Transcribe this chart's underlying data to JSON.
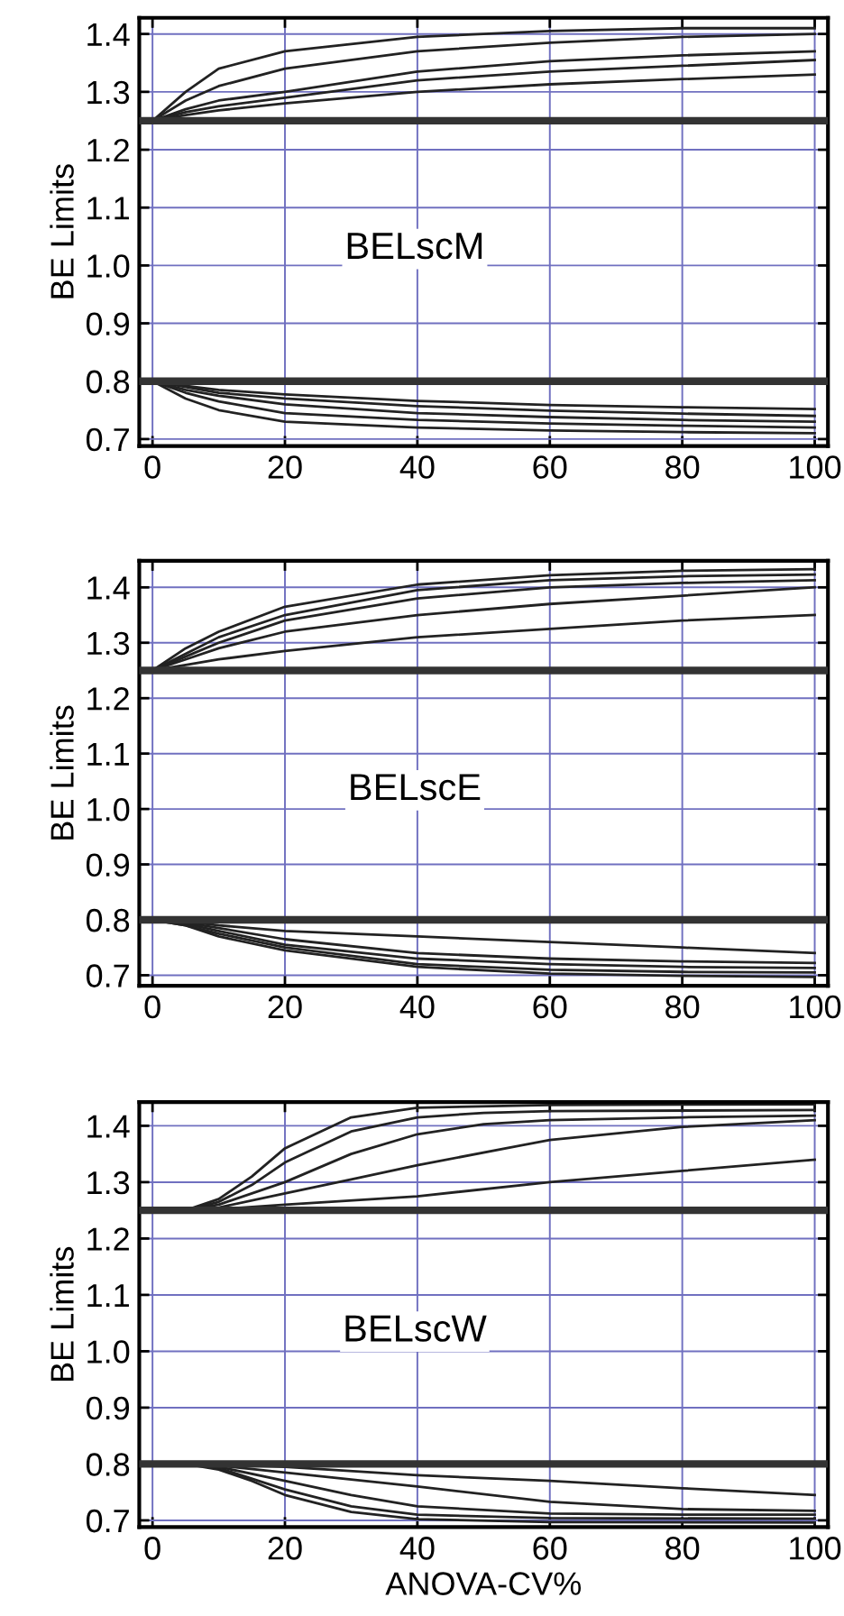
{
  "chart_data": [
    {
      "type": "line",
      "ylabel": "BE Limits",
      "annotations": [
        "BELscM"
      ],
      "xlim": [
        -2,
        102
      ],
      "ylim": [
        0.688,
        1.428
      ],
      "xticks": [
        0,
        20,
        40,
        60,
        80,
        100
      ],
      "yticks": [
        {
          "value": 0.7,
          "label": "0.7"
        },
        {
          "value": 0.8,
          "label": "0.8"
        },
        {
          "value": 0.9,
          "label": "0.9"
        },
        {
          "value": 1.0,
          "label": "1.0"
        },
        {
          "value": 1.1,
          "label": "1.1"
        },
        {
          "value": 1.2,
          "label": "1.2"
        },
        {
          "value": 1.3,
          "label": "1.3"
        },
        {
          "value": 1.4,
          "label": "1.4"
        }
      ],
      "grid": true,
      "legend": false,
      "ref_lines": [
        {
          "axis": "y",
          "value": 1.25,
          "color": "#333333"
        },
        {
          "axis": "y",
          "value": 0.8,
          "color": "#333333"
        }
      ],
      "series": [
        {
          "color": "#222222",
          "x": [
            0,
            5,
            10,
            20,
            40,
            60,
            80,
            100
          ],
          "values": [
            1.25,
            1.3,
            1.34,
            1.37,
            1.395,
            1.405,
            1.41,
            1.41
          ]
        },
        {
          "color": "#222222",
          "x": [
            0,
            5,
            10,
            20,
            40,
            60,
            80,
            100
          ],
          "values": [
            1.25,
            1.285,
            1.31,
            1.34,
            1.37,
            1.385,
            1.395,
            1.4
          ]
        },
        {
          "color": "#222222",
          "x": [
            0,
            5,
            10,
            20,
            40,
            60,
            80,
            100
          ],
          "values": [
            1.25,
            1.27,
            1.285,
            1.3,
            1.335,
            1.353,
            1.363,
            1.37
          ]
        },
        {
          "color": "#222222",
          "x": [
            0,
            5,
            10,
            20,
            40,
            60,
            80,
            100
          ],
          "values": [
            1.25,
            1.265,
            1.275,
            1.29,
            1.32,
            1.335,
            1.345,
            1.355
          ]
        },
        {
          "color": "#222222",
          "x": [
            0,
            5,
            10,
            20,
            40,
            60,
            80,
            100
          ],
          "values": [
            1.25,
            1.26,
            1.268,
            1.28,
            1.3,
            1.313,
            1.322,
            1.33
          ]
        },
        {
          "color": "#222222",
          "x": [
            0,
            5,
            10,
            20,
            40,
            60,
            80,
            100
          ],
          "values": [
            0.8,
            0.77,
            0.75,
            0.73,
            0.72,
            0.715,
            0.712,
            0.71
          ]
        },
        {
          "color": "#222222",
          "x": [
            0,
            5,
            10,
            20,
            40,
            60,
            80,
            100
          ],
          "values": [
            0.8,
            0.78,
            0.765,
            0.745,
            0.733,
            0.727,
            0.723,
            0.72
          ]
        },
        {
          "color": "#222222",
          "x": [
            0,
            5,
            10,
            20,
            40,
            60,
            80,
            100
          ],
          "values": [
            0.8,
            0.785,
            0.775,
            0.76,
            0.745,
            0.738,
            0.733,
            0.73
          ]
        },
        {
          "color": "#222222",
          "x": [
            0,
            5,
            10,
            20,
            40,
            60,
            80,
            100
          ],
          "values": [
            0.8,
            0.79,
            0.78,
            0.77,
            0.757,
            0.749,
            0.744,
            0.74
          ]
        },
        {
          "color": "#222222",
          "x": [
            0,
            5,
            10,
            20,
            40,
            60,
            80,
            100
          ],
          "values": [
            0.8,
            0.792,
            0.785,
            0.777,
            0.766,
            0.759,
            0.755,
            0.752
          ]
        }
      ]
    },
    {
      "type": "line",
      "ylabel": "BE Limits",
      "annotations": [
        "BELscE"
      ],
      "xlim": [
        -2,
        102
      ],
      "ylim": [
        0.681,
        1.448
      ],
      "xticks": [
        0,
        20,
        40,
        60,
        80,
        100
      ],
      "yticks": [
        {
          "value": 0.7,
          "label": "0.7"
        },
        {
          "value": 0.8,
          "label": "0.8"
        },
        {
          "value": 0.9,
          "label": "0.9"
        },
        {
          "value": 1.0,
          "label": "1.0"
        },
        {
          "value": 1.1,
          "label": "1.1"
        },
        {
          "value": 1.2,
          "label": "1.2"
        },
        {
          "value": 1.3,
          "label": "1.3"
        },
        {
          "value": 1.4,
          "label": "1.4"
        }
      ],
      "grid": true,
      "legend": false,
      "ref_lines": [
        {
          "axis": "y",
          "value": 1.25,
          "color": "#333333"
        },
        {
          "axis": "y",
          "value": 0.8,
          "color": "#333333"
        }
      ],
      "series": [
        {
          "color": "#222222",
          "x": [
            0,
            5,
            10,
            20,
            40,
            60,
            80,
            100
          ],
          "values": [
            1.25,
            1.29,
            1.32,
            1.365,
            1.405,
            1.422,
            1.43,
            1.433
          ]
        },
        {
          "color": "#222222",
          "x": [
            0,
            5,
            10,
            20,
            40,
            60,
            80,
            100
          ],
          "values": [
            1.25,
            1.28,
            1.31,
            1.35,
            1.395,
            1.413,
            1.42,
            1.423
          ]
        },
        {
          "color": "#222222",
          "x": [
            0,
            5,
            10,
            20,
            40,
            60,
            80,
            100
          ],
          "values": [
            1.25,
            1.275,
            1.3,
            1.34,
            1.38,
            1.4,
            1.408,
            1.413
          ]
        },
        {
          "color": "#222222",
          "x": [
            0,
            5,
            10,
            20,
            40,
            60,
            80,
            100
          ],
          "values": [
            1.25,
            1.27,
            1.29,
            1.32,
            1.35,
            1.37,
            1.385,
            1.4
          ]
        },
        {
          "color": "#222222",
          "x": [
            0,
            5,
            10,
            20,
            40,
            60,
            80,
            100
          ],
          "values": [
            1.25,
            1.26,
            1.27,
            1.285,
            1.31,
            1.325,
            1.34,
            1.35
          ]
        },
        {
          "color": "#222222",
          "x": [
            0,
            5,
            10,
            20,
            40,
            60,
            80,
            100
          ],
          "values": [
            0.8,
            0.79,
            0.77,
            0.745,
            0.715,
            0.703,
            0.699,
            0.697
          ]
        },
        {
          "color": "#222222",
          "x": [
            0,
            5,
            10,
            20,
            40,
            60,
            80,
            100
          ],
          "values": [
            0.8,
            0.79,
            0.775,
            0.75,
            0.72,
            0.71,
            0.706,
            0.705
          ]
        },
        {
          "color": "#222222",
          "x": [
            0,
            5,
            10,
            20,
            40,
            60,
            80,
            100
          ],
          "values": [
            0.8,
            0.793,
            0.78,
            0.755,
            0.73,
            0.72,
            0.715,
            0.713
          ]
        },
        {
          "color": "#222222",
          "x": [
            0,
            5,
            10,
            20,
            40,
            60,
            80,
            100
          ],
          "values": [
            0.8,
            0.795,
            0.785,
            0.765,
            0.74,
            0.73,
            0.725,
            0.722
          ]
        },
        {
          "color": "#222222",
          "x": [
            0,
            5,
            10,
            20,
            40,
            60,
            80,
            100
          ],
          "values": [
            0.8,
            0.797,
            0.79,
            0.78,
            0.77,
            0.76,
            0.75,
            0.74
          ]
        }
      ]
    },
    {
      "type": "line",
      "xlabel": "ANOVA-CV%",
      "ylabel": "BE Limits",
      "annotations": [
        "BELscW"
      ],
      "xlim": [
        -2,
        102
      ],
      "ylim": [
        0.688,
        1.442
      ],
      "xticks": [
        0,
        20,
        40,
        60,
        80,
        100
      ],
      "yticks": [
        {
          "value": 0.7,
          "label": "0.7"
        },
        {
          "value": 0.8,
          "label": "0.8"
        },
        {
          "value": 0.9,
          "label": "0.9"
        },
        {
          "value": 1.0,
          "label": "1.0"
        },
        {
          "value": 1.1,
          "label": "1.1"
        },
        {
          "value": 1.2,
          "label": "1.2"
        },
        {
          "value": 1.3,
          "label": "1.3"
        },
        {
          "value": 1.4,
          "label": "1.4"
        }
      ],
      "grid": true,
      "legend": false,
      "ref_lines": [
        {
          "axis": "y",
          "value": 1.25,
          "color": "#333333"
        },
        {
          "axis": "y",
          "value": 0.8,
          "color": "#333333"
        }
      ],
      "series": [
        {
          "color": "#222222",
          "x": [
            0,
            5,
            10,
            15,
            20,
            30,
            40,
            60,
            100
          ],
          "values": [
            1.25,
            1.25,
            1.27,
            1.31,
            1.36,
            1.415,
            1.432,
            1.437,
            1.438
          ]
        },
        {
          "color": "#222222",
          "x": [
            0,
            5,
            10,
            15,
            20,
            30,
            40,
            50,
            60,
            100
          ],
          "values": [
            1.25,
            1.25,
            1.265,
            1.295,
            1.335,
            1.39,
            1.415,
            1.423,
            1.426,
            1.428
          ]
        },
        {
          "color": "#222222",
          "x": [
            0,
            5,
            10,
            20,
            30,
            40,
            50,
            60,
            80,
            100
          ],
          "values": [
            1.25,
            1.25,
            1.26,
            1.3,
            1.35,
            1.385,
            1.403,
            1.41,
            1.415,
            1.418
          ]
        },
        {
          "color": "#222222",
          "x": [
            0,
            5,
            10,
            20,
            30,
            40,
            60,
            80,
            100
          ],
          "values": [
            1.25,
            1.25,
            1.255,
            1.28,
            1.305,
            1.33,
            1.375,
            1.398,
            1.41
          ]
        },
        {
          "color": "#222222",
          "x": [
            0,
            5,
            10,
            20,
            40,
            60,
            80,
            100
          ],
          "values": [
            1.25,
            1.25,
            1.252,
            1.26,
            1.275,
            1.3,
            1.32,
            1.34
          ]
        },
        {
          "color": "#222222",
          "x": [
            0,
            5,
            10,
            15,
            20,
            30,
            40,
            60,
            100
          ],
          "values": [
            0.8,
            0.8,
            0.79,
            0.77,
            0.745,
            0.715,
            0.702,
            0.697,
            0.696
          ]
        },
        {
          "color": "#222222",
          "x": [
            0,
            5,
            10,
            20,
            30,
            40,
            60,
            100
          ],
          "values": [
            0.8,
            0.8,
            0.793,
            0.755,
            0.725,
            0.71,
            0.704,
            0.703
          ]
        },
        {
          "color": "#222222",
          "x": [
            0,
            5,
            10,
            20,
            30,
            40,
            60,
            80,
            100
          ],
          "values": [
            0.8,
            0.8,
            0.795,
            0.77,
            0.745,
            0.725,
            0.712,
            0.71,
            0.71
          ]
        },
        {
          "color": "#222222",
          "x": [
            0,
            5,
            10,
            20,
            40,
            60,
            80,
            100
          ],
          "values": [
            0.8,
            0.8,
            0.797,
            0.785,
            0.76,
            0.733,
            0.72,
            0.717
          ]
        },
        {
          "color": "#222222",
          "x": [
            0,
            5,
            10,
            20,
            40,
            60,
            80,
            100
          ],
          "values": [
            0.8,
            0.8,
            0.799,
            0.795,
            0.78,
            0.77,
            0.757,
            0.745
          ]
        }
      ]
    }
  ]
}
